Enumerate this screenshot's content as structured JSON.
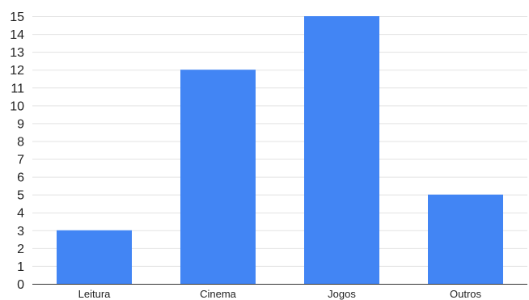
{
  "chart_data": {
    "type": "bar",
    "categories": [
      "Leitura",
      "Cinema",
      "Jogos",
      "Outros"
    ],
    "values": [
      3,
      12,
      15,
      5
    ],
    "title": "",
    "xlabel": "",
    "ylabel": "",
    "ylim": [
      0,
      15
    ],
    "yticks": [
      "0",
      "1",
      "2",
      "3",
      "4",
      "5",
      "6",
      "7",
      "8",
      "9",
      "10",
      "11",
      "12",
      "13",
      "14",
      "15"
    ],
    "grid": true,
    "legend": "none",
    "bar_color": "#4285f4"
  }
}
